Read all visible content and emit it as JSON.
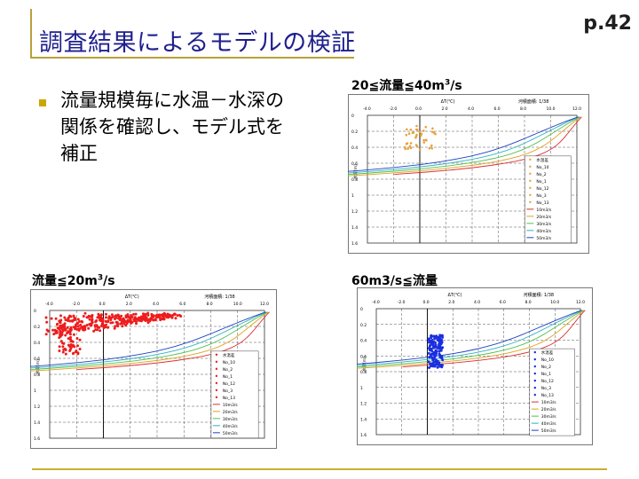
{
  "slide": {
    "title": "調査結果によるモデルの検証",
    "page_number": "p.42",
    "bullet": "流量規模毎に水温－水深の関係を確認し、モデル式を補正"
  },
  "charts": [
    {
      "caption": "20≦流量≦40m3/s",
      "header_mid": "ΔT(℃)",
      "header_right": "河積面積: 1/38",
      "xticks": [
        "-4.0",
        "-2.0",
        "0.0",
        "2.0",
        "4.0",
        "6.0",
        "8.0",
        "10.0",
        "12.0"
      ],
      "yticks": [
        "0",
        "0.2",
        "0.4",
        "0.6",
        "0.8",
        "1",
        "1.2",
        "1.4",
        "1.6"
      ],
      "ylabel": "水深(m)",
      "legend": [
        "水温差",
        "No_10",
        "No_2",
        "No_1",
        "No_12",
        "No_3",
        "No_13",
        "10m3/s",
        "20m3/s",
        "30m3/s",
        "40m3/s",
        "50m3/s"
      ],
      "scatter_color": "#e8a23a"
    },
    {
      "caption": "流量≦20m3/s",
      "header_mid": "ΔT(℃)",
      "header_right": "河積面積: 1/38",
      "xticks": [
        "-4.0",
        "-2.0",
        "0.0",
        "2.0",
        "4.0",
        "6.0",
        "8.0",
        "10.0",
        "12.0"
      ],
      "yticks": [
        "0",
        "0.2",
        "0.4",
        "0.6",
        "0.8",
        "1",
        "1.2",
        "1.4",
        "1.6"
      ],
      "ylabel": "水深(m)",
      "legend": [
        "水温差",
        "No_10",
        "No_2",
        "No_1",
        "No_12",
        "No_3",
        "No_13",
        "10m3/s",
        "20m3/s",
        "30m3/s",
        "40m3/s",
        "50m3/s"
      ],
      "scatter_color": "#ee1c1c"
    },
    {
      "caption": "60m3/s≦流量",
      "header_mid": "ΔT(℃)",
      "header_right": "河積面積: 1/38",
      "xticks": [
        "-4.0",
        "-2.0",
        "0.0",
        "2.0",
        "4.0",
        "6.0",
        "8.0",
        "10.0",
        "12.0"
      ],
      "yticks": [
        "0",
        "0.2",
        "0.4",
        "0.6",
        "0.8",
        "1",
        "1.2",
        "1.4",
        "1.6"
      ],
      "ylabel": "水深(m)",
      "legend": [
        "水温差",
        "No_10",
        "No_2",
        "No_1",
        "No_12",
        "No_3",
        "No_13",
        "10m3/s",
        "20m3/s",
        "30m3/s",
        "40m3/s",
        "50m3/s"
      ],
      "scatter_color": "#1a2ee0"
    }
  ],
  "curve_colors": [
    "#d83030",
    "#e0a020",
    "#50c050",
    "#30b0c0",
    "#2040c0"
  ]
}
